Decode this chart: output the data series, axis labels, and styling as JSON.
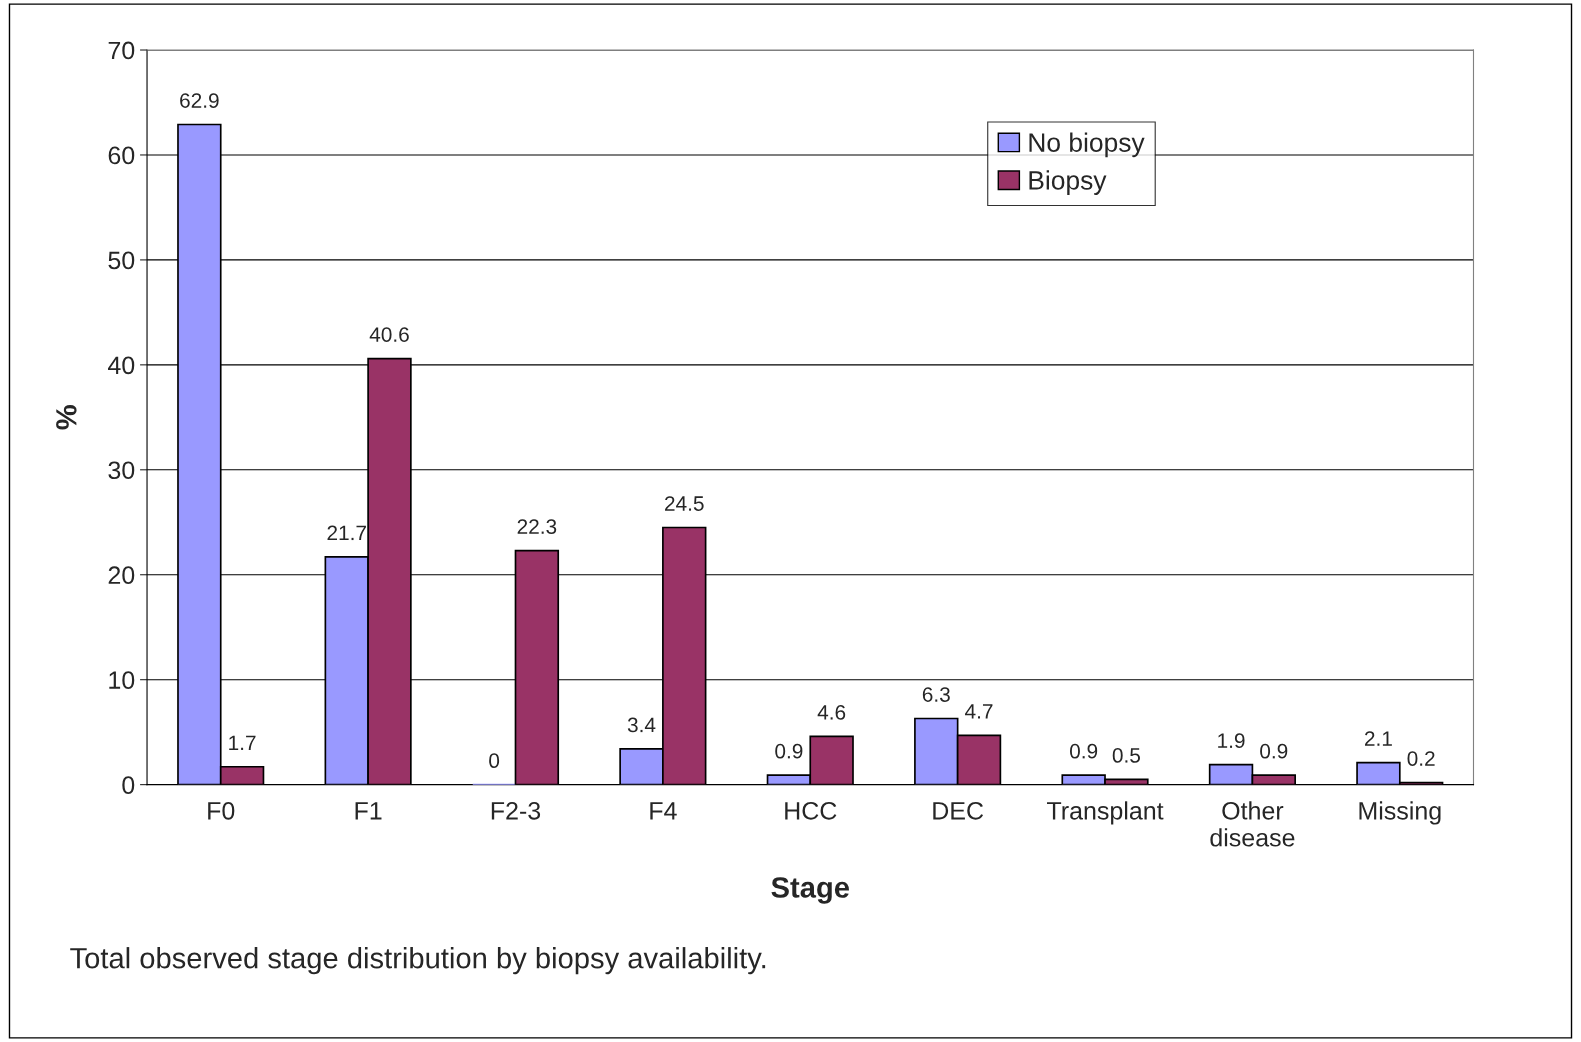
{
  "chart_data": {
    "type": "bar",
    "xlabel": "Stage",
    "ylabel": "%",
    "categories": [
      "F0",
      "F1",
      "F2-3",
      "F4",
      "HCC",
      "DEC",
      "Transplant",
      "Other\ndisease",
      "Missing"
    ],
    "series": [
      {
        "name": "No biopsy",
        "color": "#9999ff",
        "values": [
          62.9,
          21.7,
          0,
          3.4,
          0.9,
          6.3,
          0.9,
          1.9,
          2.1
        ]
      },
      {
        "name": "Biopsy",
        "color": "#993366",
        "values": [
          1.7,
          40.6,
          22.3,
          24.5,
          4.6,
          4.7,
          0.5,
          0.9,
          0.2
        ]
      }
    ],
    "ylim": [
      0,
      70
    ],
    "yticks": [
      0,
      10,
      20,
      30,
      40,
      50,
      60,
      70
    ],
    "grid": "y",
    "legend": "top right",
    "data_labels": true,
    "annotations": [
      "Total observed stage distribution by biopsy availability."
    ]
  }
}
